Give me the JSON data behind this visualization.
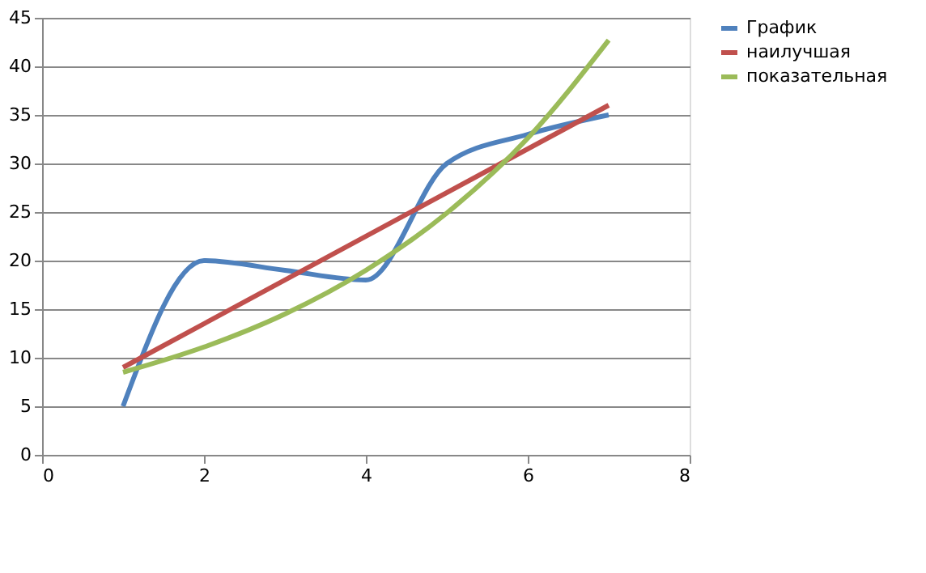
{
  "chart_data": {
    "type": "line",
    "x": [
      1,
      2,
      3,
      4,
      5,
      6,
      7
    ],
    "series": [
      {
        "name": "График",
        "color": "#4f81bd",
        "values": [
          5,
          20,
          19,
          18,
          30,
          33,
          35
        ]
      },
      {
        "name": "наилучшая",
        "color": "#c0504d",
        "x": [
          1,
          7
        ],
        "values": [
          9,
          36
        ]
      },
      {
        "name": "показательная",
        "color": "#9bbb59",
        "values": [
          8.5,
          11.1,
          14.5,
          19.0,
          24.9,
          32.6,
          42.7
        ]
      }
    ],
    "xlim": [
      0,
      8
    ],
    "xticks": [
      0,
      2,
      4,
      6,
      8
    ],
    "ylim": [
      0,
      45
    ],
    "yticks": [
      0,
      5,
      10,
      15,
      20,
      25,
      30,
      35,
      40,
      45
    ],
    "grid": "y",
    "legend": "right",
    "marker": "none",
    "line_style": "solid"
  }
}
